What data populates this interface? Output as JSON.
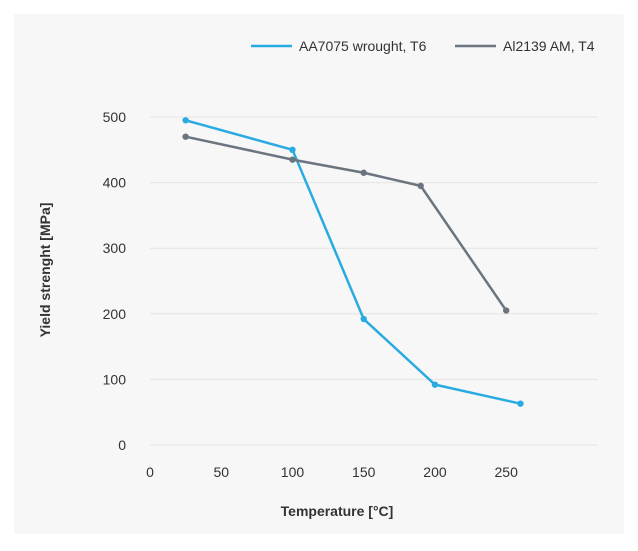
{
  "colors": {
    "background": "#f7f7f7",
    "grid": "#e4e4e4",
    "text": "#333333",
    "series_aa7075": "#29abe2",
    "series_al2139": "#6b7580"
  },
  "chart_data": {
    "type": "line",
    "xlabel": "Temperature [°C]",
    "ylabel": "Yield strenght [MPa]",
    "xlim": [
      -15,
      320
    ],
    "ylim": [
      0,
      500
    ],
    "xticks": [
      0,
      50,
      100,
      150,
      200,
      250
    ],
    "yticks": [
      0,
      100,
      200,
      300,
      400,
      500
    ],
    "xtick_labels": [
      "0",
      "50",
      "100",
      "150",
      "200",
      "250"
    ],
    "ytick_labels": [
      "0",
      "100",
      "200",
      "300",
      "400",
      "500"
    ],
    "grid": "horizontal",
    "legend_position": "top-right",
    "series": [
      {
        "name": "AA7075 wrought, T6",
        "color": "#29abe2",
        "x": [
          25,
          100,
          150,
          200,
          260
        ],
        "y": [
          495,
          450,
          192,
          92,
          63
        ]
      },
      {
        "name": "Al2139 AM, T4",
        "color": "#6b7580",
        "x": [
          25,
          100,
          150,
          190,
          250
        ],
        "y": [
          470,
          435,
          415,
          395,
          205
        ]
      }
    ]
  }
}
